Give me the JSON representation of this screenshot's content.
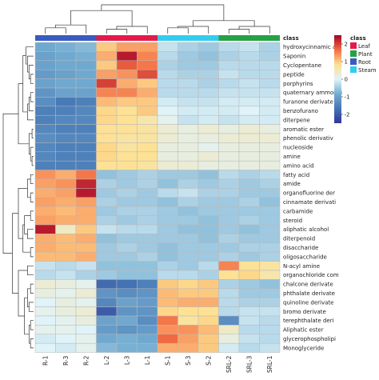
{
  "chart_data": {
    "type": "heatmap",
    "columns": [
      "R-1",
      "R-3",
      "R-2",
      "L-2",
      "L-3",
      "L-1",
      "S-1",
      "S-3",
      "S-2",
      "SRL-2",
      "SRL-3",
      "SRL-1"
    ],
    "column_class": [
      "Root",
      "Root",
      "Root",
      "Leaf",
      "Leaf",
      "Leaf",
      "Steam",
      "Steam",
      "Steam",
      "Plant",
      "Plant",
      "Plant"
    ],
    "rows": [
      "hydroxycinnamic ac",
      "Saponin",
      "Cyclopentane",
      "peptide",
      "porphyrins",
      "quaternary ammoniu",
      "furanone derivate",
      "benzofurano",
      "diterpene",
      "aromatic ester",
      "phenolic derivativ",
      "nucleoside",
      "amine",
      "amino acid",
      "fatty acid",
      "amide",
      "organofluorine der",
      "cinnamate derivati",
      "carbamide",
      "steroid",
      "aliphatic alcohol",
      "diterpenoid",
      "disaccharide",
      "oligosaccharide",
      "N-acyl amine",
      "organochloride com",
      "chalcone derivate",
      "phthalate derivate",
      "quinoline derivate",
      "bromo derivate",
      "terephthalate deri",
      "Aliphatic ester",
      "glycerophospholipi",
      "Monoglyceride"
    ],
    "values": [
      [
        -0.9,
        -0.8,
        -0.7,
        1.0,
        1.3,
        1.3,
        -0.2,
        -0.4,
        -0.5,
        -0.3,
        -0.2,
        -0.4
      ],
      [
        -1.0,
        -0.9,
        -0.8,
        1.2,
        2.3,
        1.5,
        -0.3,
        -0.5,
        -0.6,
        -0.4,
        -0.3,
        -0.4
      ],
      [
        -1.0,
        -0.9,
        -0.9,
        1.0,
        1.8,
        1.6,
        -0.4,
        -0.5,
        -0.5,
        -0.3,
        -0.3,
        -0.3
      ],
      [
        -1.1,
        -1.0,
        -0.9,
        1.3,
        1.4,
        1.9,
        -0.3,
        -0.4,
        -0.4,
        -0.2,
        -0.3,
        -0.3
      ],
      [
        -1.0,
        -0.9,
        -0.9,
        2.0,
        1.2,
        1.0,
        -0.3,
        -0.3,
        -0.4,
        -0.3,
        -0.2,
        -0.3
      ],
      [
        -1.2,
        -1.0,
        -1.0,
        1.5,
        1.5,
        1.2,
        -0.3,
        -0.3,
        -0.3,
        -0.2,
        -0.2,
        -0.2
      ],
      [
        -1.3,
        -1.6,
        -1.5,
        1.1,
        1.0,
        1.0,
        -0.1,
        -0.2,
        -0.2,
        -0.1,
        -0.1,
        -0.1
      ],
      [
        -1.5,
        -1.5,
        -1.4,
        0.9,
        0.8,
        1.0,
        0.0,
        -0.1,
        -0.1,
        -0.1,
        0.0,
        -0.1
      ],
      [
        -1.5,
        -1.4,
        -1.4,
        0.9,
        0.8,
        0.6,
        0.1,
        -0.2,
        -0.1,
        -0.2,
        -0.1,
        -0.1
      ],
      [
        -1.4,
        -1.5,
        -1.5,
        0.8,
        0.8,
        0.7,
        0.3,
        0.2,
        0.3,
        0.2,
        0.3,
        0.2
      ],
      [
        -1.3,
        -1.4,
        -1.4,
        0.8,
        0.7,
        0.7,
        0.3,
        0.2,
        0.2,
        0.3,
        0.3,
        0.3
      ],
      [
        -1.4,
        -1.5,
        -1.5,
        0.9,
        0.7,
        0.8,
        0.2,
        0.2,
        0.1,
        0.2,
        0.2,
        0.2
      ],
      [
        -1.4,
        -1.5,
        -1.5,
        0.9,
        0.8,
        0.8,
        0.2,
        0.2,
        0.3,
        0.2,
        0.2,
        0.2
      ],
      [
        -1.5,
        -1.5,
        -1.5,
        0.8,
        0.8,
        0.7,
        0.3,
        0.3,
        0.2,
        0.2,
        0.2,
        0.2
      ],
      [
        1.4,
        1.2,
        1.6,
        -0.6,
        -0.5,
        -0.4,
        -0.5,
        -0.5,
        -0.6,
        -0.3,
        -0.4,
        -0.3
      ],
      [
        1.3,
        1.4,
        2.2,
        -0.4,
        -0.5,
        -0.4,
        -0.6,
        -0.4,
        -0.5,
        -0.4,
        -0.5,
        -0.4
      ],
      [
        1.2,
        1.3,
        2.3,
        -0.5,
        -0.4,
        -0.5,
        -0.3,
        -0.2,
        -0.4,
        -0.4,
        -0.5,
        -0.5
      ],
      [
        1.3,
        1.2,
        1.3,
        -0.4,
        -0.5,
        -0.5,
        -0.6,
        -0.4,
        -0.5,
        -0.5,
        -0.4,
        -0.6
      ],
      [
        1.2,
        1.1,
        1.2,
        -0.5,
        -0.4,
        -0.4,
        -0.5,
        -0.6,
        -0.5,
        -0.5,
        -0.5,
        -0.5
      ],
      [
        1.3,
        1.2,
        1.2,
        -0.4,
        -0.5,
        -0.4,
        -0.5,
        -0.5,
        -0.6,
        -0.5,
        -0.4,
        -0.5
      ],
      [
        2.3,
        0.4,
        1.0,
        -0.2,
        -0.3,
        -0.3,
        -0.5,
        -0.6,
        -0.6,
        -0.5,
        -0.6,
        -0.5
      ],
      [
        1.2,
        1.1,
        1.2,
        -0.6,
        -0.5,
        -0.5,
        -0.5,
        -0.5,
        -0.6,
        -0.4,
        -0.5,
        -0.5
      ],
      [
        1.2,
        1.1,
        1.1,
        -0.5,
        -0.4,
        -0.5,
        -0.6,
        -0.5,
        -0.5,
        -0.5,
        -0.4,
        -0.4
      ],
      [
        1.1,
        1.1,
        1.2,
        -0.5,
        -0.5,
        -0.4,
        -0.6,
        -0.5,
        -0.5,
        -0.4,
        -0.5,
        -0.4
      ],
      [
        -0.2,
        -0.3,
        -0.2,
        -0.6,
        -0.6,
        -0.6,
        -0.4,
        -0.5,
        -0.3,
        1.5,
        0.8,
        0.7
      ],
      [
        -0.3,
        -0.2,
        -0.4,
        -0.5,
        -0.6,
        -0.6,
        -0.3,
        -0.3,
        -0.4,
        0.8,
        0.9,
        0.6
      ],
      [
        0.3,
        0.2,
        0.1,
        -1.8,
        -1.7,
        -1.5,
        1.0,
        0.9,
        1.0,
        -0.4,
        -0.5,
        -0.6
      ],
      [
        0.2,
        0.1,
        0.3,
        -1.2,
        -1.3,
        -1.2,
        1.1,
        1.0,
        1.0,
        -0.3,
        -0.5,
        -0.5
      ],
      [
        0.0,
        0.2,
        0.1,
        -1.4,
        -1.0,
        -1.1,
        1.1,
        1.2,
        1.2,
        -0.3,
        -0.4,
        -0.4
      ],
      [
        0.1,
        0.2,
        0.3,
        -2.0,
        -1.2,
        -1.2,
        0.9,
        0.8,
        0.8,
        -0.3,
        -0.2,
        -0.2
      ],
      [
        0.0,
        0.1,
        0.2,
        -1.0,
        -0.9,
        -1.3,
        1.6,
        0.7,
        0.9,
        -1.3,
        -0.2,
        -0.3
      ],
      [
        0.1,
        0.1,
        0.0,
        -1.1,
        -1.2,
        -1.1,
        1.4,
        1.4,
        1.1,
        0.4,
        -0.3,
        -0.3
      ],
      [
        -0.1,
        0.0,
        0.1,
        -0.9,
        -0.8,
        -0.9,
        1.7,
        1.3,
        1.0,
        0.2,
        -0.2,
        -0.3
      ],
      [
        0.0,
        -0.1,
        0.1,
        -0.7,
        -0.8,
        -0.8,
        1.2,
        1.2,
        1.0,
        -0.1,
        -0.3,
        -0.2
      ]
    ],
    "color_scale": {
      "colors": [
        "#313695",
        "#4575b4",
        "#74add1",
        "#e0f3f8",
        "#fee090",
        "#f46d43",
        "#a50026"
      ],
      "ticks": [
        2,
        1,
        0,
        -1,
        -2
      ],
      "range": [
        -2.5,
        2.5
      ]
    },
    "class_legend": {
      "title": "class",
      "items": [
        {
          "label": "Leaf",
          "color": "#e41a4b"
        },
        {
          "label": "Plant",
          "color": "#26a146"
        },
        {
          "label": "Root",
          "color": "#3a5bbf"
        },
        {
          "label": "Steam",
          "color": "#33ccee"
        }
      ]
    },
    "annotation_label": "class",
    "col_dendrogram": [
      [
        0,
        1,
        0.2
      ],
      [
        12,
        2,
        0.3
      ],
      [
        3,
        4,
        0.15
      ],
      [
        14,
        5,
        0.25
      ],
      [
        6,
        7,
        0.2
      ],
      [
        16,
        8,
        0.25
      ],
      [
        9,
        10,
        0.15
      ],
      [
        18,
        11,
        0.25
      ],
      [
        17,
        19,
        0.45
      ],
      [
        13,
        15,
        0.8
      ],
      [
        20,
        21,
        1.0
      ]
    ],
    "row_dendrogram": [
      [
        3,
        4,
        0.1
      ],
      [
        2,
        34,
        0.15
      ],
      [
        1,
        35,
        0.2
      ],
      [
        0,
        36,
        0.25
      ],
      [
        5,
        6,
        0.1
      ],
      [
        38,
        7,
        0.15
      ],
      [
        39,
        8,
        0.2
      ],
      [
        37,
        40,
        0.35
      ],
      [
        9,
        10,
        0.05
      ],
      [
        12,
        13,
        0.05
      ],
      [
        11,
        43,
        0.1
      ],
      [
        42,
        44,
        0.15
      ],
      [
        41,
        45,
        0.5
      ],
      [
        14,
        15,
        0.1
      ],
      [
        16,
        17,
        0.1
      ],
      [
        47,
        48,
        0.2
      ],
      [
        18,
        19,
        0.1
      ],
      [
        20,
        21,
        0.2
      ],
      [
        50,
        51,
        0.3
      ],
      [
        22,
        23,
        0.1
      ],
      [
        52,
        53,
        0.35
      ],
      [
        49,
        54,
        0.5
      ],
      [
        24,
        25,
        0.2
      ],
      [
        26,
        27,
        0.1
      ],
      [
        28,
        29,
        0.15
      ],
      [
        57,
        58,
        0.2
      ],
      [
        30,
        31,
        0.1
      ],
      [
        32,
        33,
        0.1
      ],
      [
        60,
        61,
        0.15
      ],
      [
        59,
        62,
        0.3
      ],
      [
        56,
        63,
        0.5
      ],
      [
        55,
        64,
        0.7
      ],
      [
        46,
        65,
        1.0
      ]
    ]
  }
}
